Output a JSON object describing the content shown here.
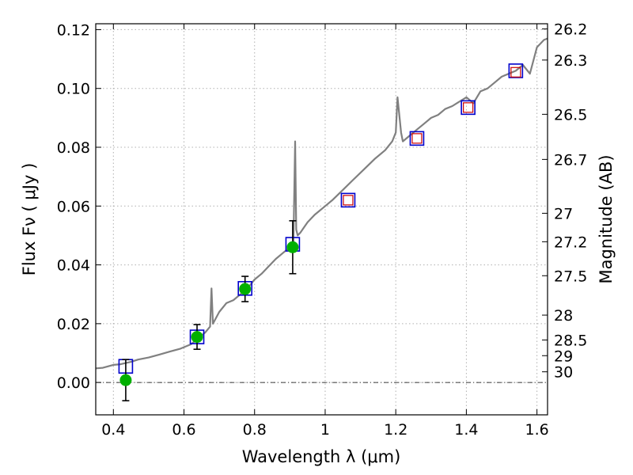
{
  "chart_data": {
    "type": "scatter",
    "xlabel": "Wavelength  λ (μm)",
    "ylabel": "Flux  Fν ( μJy )",
    "y2label": "Magnitude (AB)",
    "xlim": [
      0.35,
      1.63
    ],
    "ylim": [
      -0.011,
      0.122
    ],
    "grid": true,
    "x_ticks": [
      {
        "value": 0.4,
        "label": "0.4"
      },
      {
        "value": 0.6,
        "label": "0.6"
      },
      {
        "value": 0.8,
        "label": "0.8"
      },
      {
        "value": 1.0,
        "label": "1"
      },
      {
        "value": 1.2,
        "label": "1.2"
      },
      {
        "value": 1.4,
        "label": "1.4"
      },
      {
        "value": 1.6,
        "label": "1.6"
      }
    ],
    "y_ticks": [
      {
        "value": 0.0,
        "label": "0.00"
      },
      {
        "value": 0.02,
        "label": "0.02"
      },
      {
        "value": 0.04,
        "label": "0.04"
      },
      {
        "value": 0.06,
        "label": "0.06"
      },
      {
        "value": 0.08,
        "label": "0.08"
      },
      {
        "value": 0.1,
        "label": "0.10"
      },
      {
        "value": 0.12,
        "label": "0.12"
      }
    ],
    "mag_ticks": [
      {
        "value": 26.2,
        "label": "26.2"
      },
      {
        "value": 26.3,
        "label": "26.3"
      },
      {
        "value": 26.5,
        "label": "26.5"
      },
      {
        "value": 26.7,
        "label": "26.7"
      },
      {
        "value": 27,
        "label": "27"
      },
      {
        "value": 27.2,
        "label": "27.2"
      },
      {
        "value": 27.5,
        "label": "27.5"
      },
      {
        "value": 28,
        "label": "28"
      },
      {
        "value": 28.5,
        "label": "28.5"
      },
      {
        "value": 29,
        "label": "29"
      },
      {
        "value": 30,
        "label": "30"
      }
    ],
    "reference_line": {
      "y": 0.0,
      "style": "dash-dot"
    },
    "series": [
      {
        "kind": "spectrum",
        "color": "#808080",
        "x": [
          0.35,
          0.37,
          0.4,
          0.42,
          0.45,
          0.47,
          0.5,
          0.53,
          0.56,
          0.59,
          0.62,
          0.64,
          0.66,
          0.674,
          0.678,
          0.682,
          0.7,
          0.72,
          0.74,
          0.76,
          0.78,
          0.8,
          0.82,
          0.84,
          0.86,
          0.88,
          0.9,
          0.91,
          0.915,
          0.918,
          0.922,
          0.93,
          0.95,
          0.97,
          1.0,
          1.02,
          1.05,
          1.08,
          1.11,
          1.14,
          1.17,
          1.19,
          1.2,
          1.205,
          1.215,
          1.22,
          1.24,
          1.26,
          1.28,
          1.3,
          1.32,
          1.34,
          1.36,
          1.38,
          1.4,
          1.42,
          1.44,
          1.46,
          1.48,
          1.5,
          1.52,
          1.54,
          1.56,
          1.58,
          1.6,
          1.62,
          1.63
        ],
        "y": [
          0.0048,
          0.005,
          0.006,
          0.0062,
          0.007,
          0.0078,
          0.0085,
          0.0095,
          0.0105,
          0.0115,
          0.013,
          0.015,
          0.017,
          0.019,
          0.032,
          0.02,
          0.024,
          0.027,
          0.028,
          0.03,
          0.032,
          0.035,
          0.037,
          0.0395,
          0.042,
          0.044,
          0.046,
          0.047,
          0.082,
          0.052,
          0.05,
          0.051,
          0.0545,
          0.057,
          0.06,
          0.062,
          0.0655,
          0.069,
          0.0725,
          0.076,
          0.079,
          0.082,
          0.085,
          0.097,
          0.085,
          0.082,
          0.084,
          0.086,
          0.088,
          0.09,
          0.091,
          0.093,
          0.094,
          0.0955,
          0.097,
          0.095,
          0.099,
          0.1,
          0.102,
          0.104,
          0.105,
          0.106,
          0.108,
          0.105,
          0.114,
          0.1165,
          0.117
        ]
      },
      {
        "kind": "model-photometry",
        "marker": "open-square",
        "color": "#0000cc",
        "x": [
          0.435,
          0.637,
          0.773,
          0.908,
          1.065,
          1.26,
          1.405,
          1.54
        ],
        "y": [
          0.0055,
          0.0155,
          0.032,
          0.047,
          0.062,
          0.083,
          0.0935,
          0.106
        ]
      },
      {
        "kind": "observed-detections",
        "marker": "filled-circle",
        "color": "#00b000",
        "x": [
          0.435,
          0.637,
          0.773,
          0.908
        ],
        "y": [
          0.0008,
          0.0155,
          0.0318,
          0.046
        ],
        "yerr": [
          0.007,
          0.0042,
          0.0043,
          0.009
        ]
      },
      {
        "kind": "observed-upper",
        "marker": "open-square-small",
        "color": "#cc0000",
        "x": [
          1.065,
          1.26,
          1.405,
          1.54
        ],
        "y": [
          0.062,
          0.083,
          0.0935,
          0.1055
        ]
      }
    ]
  }
}
